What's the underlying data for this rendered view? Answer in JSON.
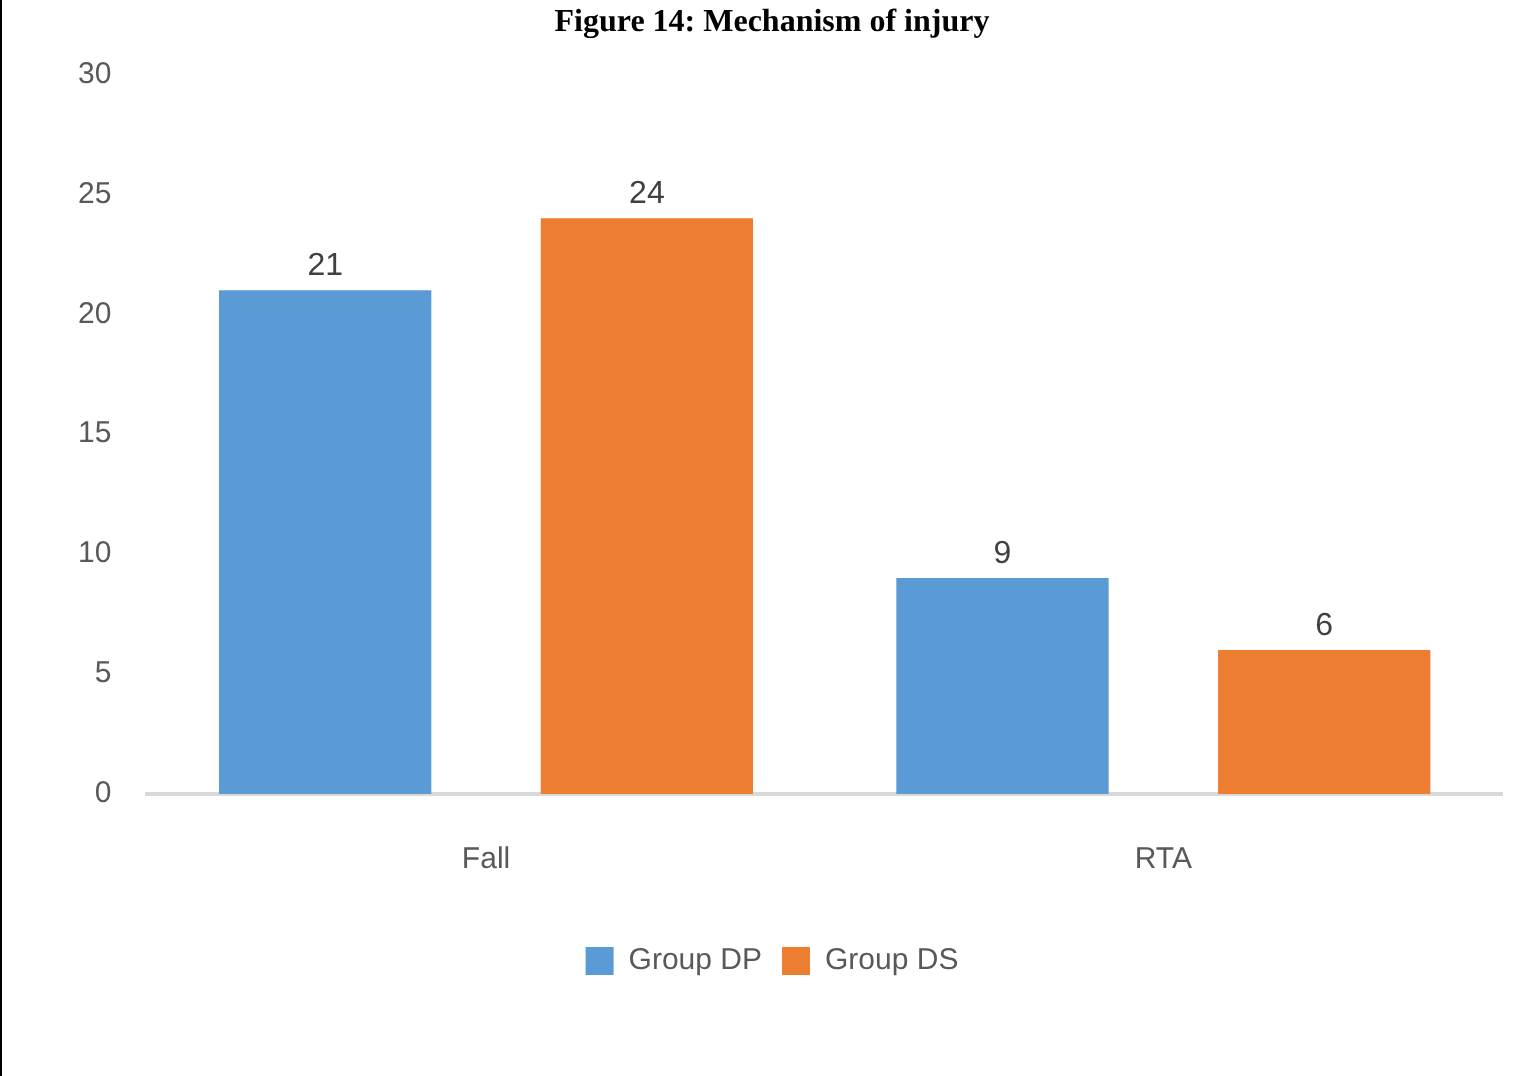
{
  "chart_data": {
    "type": "bar",
    "title": "Figure 14: Mechanism of injury",
    "categories": [
      "Fall",
      "RTA"
    ],
    "series": [
      {
        "name": "Group DP",
        "color": "#5b9bd5",
        "values": [
          21,
          9
        ]
      },
      {
        "name": "Group DS",
        "color": "#ed7d31",
        "values": [
          24,
          6
        ]
      }
    ],
    "ylim": [
      0,
      30
    ],
    "yticks": [
      0,
      5,
      10,
      15,
      20,
      25,
      30
    ],
    "grid": false,
    "legend": "bottom",
    "data_labels": true
  }
}
